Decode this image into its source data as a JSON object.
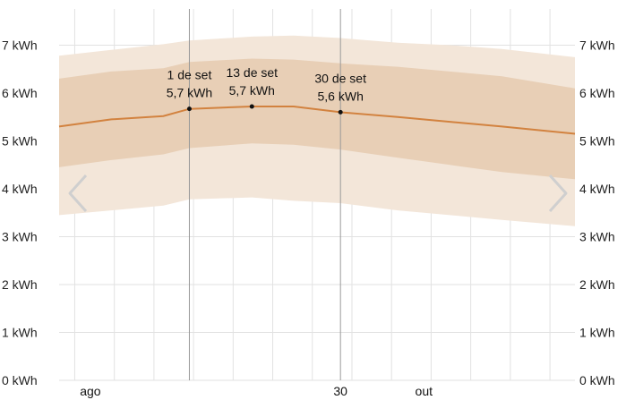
{
  "chart_data": {
    "type": "area",
    "title": "",
    "xlabel": "",
    "ylabel": "",
    "unit": "kWh",
    "ylim": [
      0,
      7.5
    ],
    "yticks": [
      {
        "value": 0,
        "label": "0 kWh"
      },
      {
        "value": 1,
        "label": "1 kWh"
      },
      {
        "value": 2,
        "label": "2 kWh"
      },
      {
        "value": 3,
        "label": "3 kWh"
      },
      {
        "value": 4,
        "label": "4 kWh"
      },
      {
        "value": 5,
        "label": "5 kWh"
      },
      {
        "value": 6,
        "label": "6 kWh"
      },
      {
        "value": 7,
        "label": "7 kWh"
      }
    ],
    "x_range_day": [
      -25,
      74
    ],
    "x_note": "day index relative to 1 de set (0 = 1 de set)",
    "xticks": [
      {
        "day": -19,
        "label": "ago"
      },
      {
        "day": 29,
        "label": "30"
      },
      {
        "day": 45,
        "label": "out"
      }
    ],
    "grid": true,
    "series": [
      {
        "role": "median",
        "color": "#d2823f",
        "points": [
          [
            -25,
            5.3
          ],
          [
            -15,
            5.45
          ],
          [
            -5,
            5.52
          ],
          [
            0,
            5.67
          ],
          [
            12,
            5.72
          ],
          [
            20,
            5.72
          ],
          [
            29,
            5.6
          ],
          [
            40,
            5.5
          ],
          [
            50,
            5.4
          ],
          [
            60,
            5.3
          ],
          [
            74,
            5.15
          ]
        ]
      },
      {
        "role": "band-25-75",
        "color": "#e8cfb6",
        "low": [
          [
            -25,
            4.45
          ],
          [
            -15,
            4.6
          ],
          [
            -5,
            4.72
          ],
          [
            0,
            4.85
          ],
          [
            12,
            4.95
          ],
          [
            20,
            4.92
          ],
          [
            29,
            4.82
          ],
          [
            40,
            4.65
          ],
          [
            50,
            4.5
          ],
          [
            60,
            4.35
          ],
          [
            74,
            4.2
          ]
        ],
        "high": [
          [
            -25,
            6.3
          ],
          [
            -15,
            6.45
          ],
          [
            -5,
            6.52
          ],
          [
            0,
            6.65
          ],
          [
            12,
            6.72
          ],
          [
            20,
            6.7
          ],
          [
            29,
            6.62
          ],
          [
            40,
            6.55
          ],
          [
            50,
            6.45
          ],
          [
            60,
            6.35
          ],
          [
            74,
            6.1
          ]
        ]
      },
      {
        "role": "band-10-90",
        "color": "#f3e6d9",
        "low": [
          [
            -25,
            3.45
          ],
          [
            -15,
            3.55
          ],
          [
            -5,
            3.65
          ],
          [
            0,
            3.78
          ],
          [
            12,
            3.82
          ],
          [
            20,
            3.75
          ],
          [
            29,
            3.7
          ],
          [
            40,
            3.55
          ],
          [
            50,
            3.45
          ],
          [
            60,
            3.35
          ],
          [
            74,
            3.22
          ]
        ],
        "high": [
          [
            -25,
            6.78
          ],
          [
            -15,
            6.9
          ],
          [
            -5,
            7.02
          ],
          [
            0,
            7.1
          ],
          [
            12,
            7.18
          ],
          [
            20,
            7.2
          ],
          [
            29,
            7.15
          ],
          [
            40,
            7.05
          ],
          [
            50,
            7.0
          ],
          [
            60,
            6.92
          ],
          [
            74,
            6.75
          ]
        ]
      }
    ],
    "annotations": [
      {
        "day": 0,
        "date": "1 de set",
        "value_label": "5,7 kWh",
        "y": 5.67
      },
      {
        "day": 12,
        "date": "13 de set",
        "value_label": "5,7 kWh",
        "y": 5.72
      },
      {
        "day": 29,
        "date": "30 de set",
        "value_label": "5,6 kWh",
        "y": 5.6
      }
    ],
    "vertical_markers": [
      0,
      29
    ],
    "colors": {
      "grid": "#e2e2e2",
      "marker": "#999999",
      "nav_arrow": "#cfcfcf"
    }
  },
  "controls": {
    "prev_icon": "chevron-left-icon",
    "next_icon": "chevron-right-icon"
  }
}
